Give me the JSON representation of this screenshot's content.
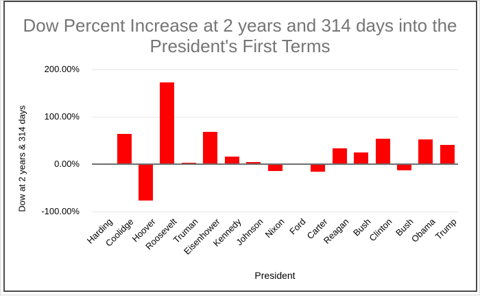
{
  "chart_data": {
    "type": "bar",
    "title": "Dow Percent Increase at 2 years and 314 days into the President's First Terms",
    "xlabel": "President",
    "ylabel": "Dow at 2 years & 314 days",
    "categories": [
      "Harding",
      "Coolidge",
      "Hoover",
      "Roosevelt",
      "Truman",
      "Eisenhower",
      "Kennedy",
      "Johnson",
      "Nixon",
      "Ford",
      "Carter",
      "Reagan",
      "Bush",
      "Clinton",
      "Bush",
      "Obama",
      "Trump"
    ],
    "values": [
      0,
      62,
      -75,
      171,
      1,
      67,
      14,
      3,
      -13,
      0,
      -14,
      32,
      23,
      52,
      -11,
      50,
      39
    ],
    "y_ticks": [
      {
        "value": 200,
        "label": "200.00%"
      },
      {
        "value": 100,
        "label": "100.00%"
      },
      {
        "value": 0,
        "label": "0.00%"
      },
      {
        "value": -100,
        "label": "-100.00%"
      }
    ],
    "ylim": [
      -100,
      212
    ],
    "grid": true,
    "legend": "none",
    "bar_color": "#ff0000",
    "title_color": "#757575",
    "axis_text_color": "#000000",
    "gridline_color": "#e8e8e8",
    "zero_line_color": "#6e6e6e",
    "frame_border_color": "#4a4a4a"
  }
}
